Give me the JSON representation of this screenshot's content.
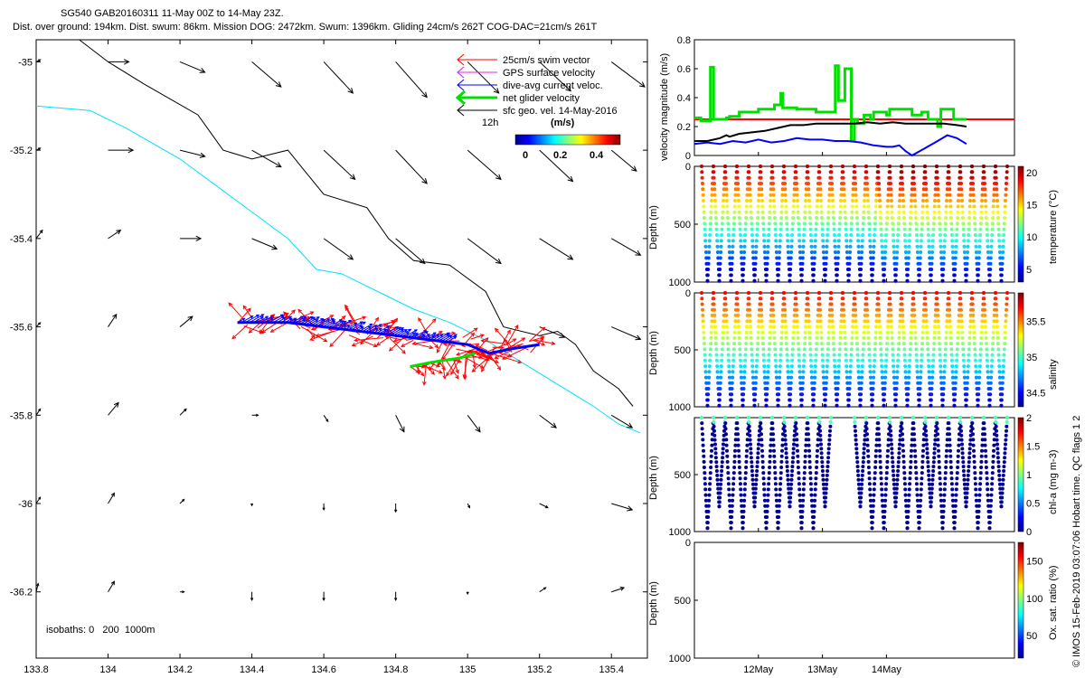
{
  "header": {
    "line1": "SG540 GAB20160311 11-May 00Z to 14-May 23Z.",
    "line2": "Dist. over ground: 194km. Dist. swum: 86km. Mission DOG: 2472km. Swum: 1396km. Gliding 24cm/s 262T COG-DAC=21cm/s 261T"
  },
  "colors": {
    "swim": "#ff0000",
    "gps": "#e020e0",
    "dac": "#0000ff",
    "net": "#00e000",
    "sfc": "#000000",
    "isobath_200": "#000000",
    "isobath_1000": "#00e0ff",
    "threshold_line": "#ff0000"
  },
  "legend": {
    "items": [
      {
        "label": "25cm/s swim vector",
        "color": "#ff0000"
      },
      {
        "label": "GPS surface velocity",
        "color": "#e020e0"
      },
      {
        "label": "dive-avg current veloc.",
        "color": "#0000ff"
      },
      {
        "label": "net glider velocity",
        "color": "#00e000"
      },
      {
        "label": "sfc geo. vel. 14-May-2016",
        "color": "#000000"
      }
    ],
    "scale_label": "12h",
    "colorbar_title": "(m/s)",
    "colorbar_ticks": [
      "0",
      "0.2",
      "0.4"
    ]
  },
  "isobaths_note": "isobaths: 0   200  1000m",
  "imos_note": "© IMOS 15-Feb-2019 03:07:06 Hobart time. QC flags 1  2",
  "chart_data": [
    {
      "type": "map",
      "xlim": [
        133.8,
        135.5
      ],
      "ylim": [
        -36.35,
        -34.95
      ],
      "x_ticks": [
        "133.8",
        "134",
        "134.2",
        "134.4",
        "134.6",
        "134.8",
        "135",
        "135.2",
        "135.4"
      ],
      "x_tick_values": [
        133.8,
        134.0,
        134.2,
        134.4,
        134.6,
        134.8,
        135.0,
        135.2,
        135.4
      ],
      "y_ticks": [
        "-35",
        "-35.2",
        "-35.4",
        "-35.6",
        "-35.8",
        "-36",
        "-36.2"
      ],
      "y_tick_values": [
        -35.0,
        -35.2,
        -35.4,
        -35.6,
        -35.8,
        -36.0,
        -36.2
      ],
      "isobath_200": [
        [
          133.92,
          -34.95
        ],
        [
          134.0,
          -35.0
        ],
        [
          134.1,
          -35.05
        ],
        [
          134.25,
          -35.12
        ],
        [
          134.32,
          -35.2
        ],
        [
          134.4,
          -35.22
        ],
        [
          134.5,
          -35.2
        ],
        [
          134.55,
          -35.25
        ],
        [
          134.6,
          -35.3
        ],
        [
          134.72,
          -35.33
        ],
        [
          134.78,
          -35.4
        ],
        [
          134.85,
          -35.45
        ],
        [
          134.95,
          -35.46
        ],
        [
          135.05,
          -35.52
        ],
        [
          135.1,
          -35.6
        ],
        [
          135.2,
          -35.62
        ],
        [
          135.25,
          -35.61
        ],
        [
          135.3,
          -35.64
        ],
        [
          135.35,
          -35.7
        ],
        [
          135.42,
          -35.74
        ],
        [
          135.46,
          -35.78
        ]
      ],
      "isobath_1000": [
        [
          133.8,
          -35.1
        ],
        [
          133.95,
          -35.11
        ],
        [
          134.05,
          -35.15
        ],
        [
          134.2,
          -35.22
        ],
        [
          134.3,
          -35.28
        ],
        [
          134.4,
          -35.34
        ],
        [
          134.5,
          -35.4
        ],
        [
          134.58,
          -35.47
        ],
        [
          134.65,
          -35.48
        ],
        [
          134.75,
          -35.52
        ],
        [
          134.85,
          -35.56
        ],
        [
          134.95,
          -35.59
        ],
        [
          135.05,
          -35.63
        ],
        [
          135.15,
          -35.68
        ],
        [
          135.25,
          -35.73
        ],
        [
          135.35,
          -35.78
        ],
        [
          135.42,
          -35.82
        ],
        [
          135.48,
          -35.84
        ]
      ],
      "glider_track": [
        [
          134.36,
          -35.59
        ],
        [
          134.5,
          -35.59
        ],
        [
          134.6,
          -35.6
        ],
        [
          134.7,
          -35.61
        ],
        [
          134.8,
          -35.62
        ],
        [
          134.9,
          -35.63
        ],
        [
          135.0,
          -35.64
        ],
        [
          135.06,
          -35.66
        ],
        [
          135.12,
          -35.65
        ],
        [
          135.2,
          -35.64
        ]
      ],
      "glider_track_return": [
        [
          134.84,
          -35.69
        ],
        [
          134.9,
          -35.68
        ],
        [
          134.98,
          -35.67
        ],
        [
          135.02,
          -35.66
        ]
      ],
      "sfc_vectors": [
        {
          "lon": 133.8,
          "lat": -35.0,
          "u": 0.02,
          "v": 0.01
        },
        {
          "lon": 134.0,
          "lat": -35.0,
          "u": 0.1,
          "v": 0.0
        },
        {
          "lon": 134.2,
          "lat": -35.0,
          "u": 0.12,
          "v": -0.05
        },
        {
          "lon": 134.4,
          "lat": -35.0,
          "u": 0.14,
          "v": -0.12
        },
        {
          "lon": 134.6,
          "lat": -35.0,
          "u": 0.14,
          "v": -0.15
        },
        {
          "lon": 134.8,
          "lat": -35.0,
          "u": 0.15,
          "v": -0.17
        },
        {
          "lon": 135.0,
          "lat": -35.0,
          "u": 0.15,
          "v": -0.15
        },
        {
          "lon": 135.2,
          "lat": -35.0,
          "u": 0.15,
          "v": -0.14
        },
        {
          "lon": 135.4,
          "lat": -35.0,
          "u": 0.16,
          "v": -0.12
        },
        {
          "lon": 133.8,
          "lat": -35.2,
          "u": 0.02,
          "v": 0.01
        },
        {
          "lon": 134.0,
          "lat": -35.2,
          "u": 0.12,
          "v": 0.0
        },
        {
          "lon": 134.2,
          "lat": -35.2,
          "u": 0.12,
          "v": -0.03
        },
        {
          "lon": 134.4,
          "lat": -35.2,
          "u": 0.14,
          "v": -0.08
        },
        {
          "lon": 134.6,
          "lat": -35.2,
          "u": 0.15,
          "v": -0.14
        },
        {
          "lon": 134.8,
          "lat": -35.2,
          "u": 0.15,
          "v": -0.16
        },
        {
          "lon": 135.0,
          "lat": -35.2,
          "u": 0.16,
          "v": -0.14
        },
        {
          "lon": 135.2,
          "lat": -35.2,
          "u": 0.16,
          "v": -0.15
        },
        {
          "lon": 135.4,
          "lat": -35.2,
          "u": 0.12,
          "v": -0.1
        },
        {
          "lon": 133.8,
          "lat": -35.4,
          "u": 0.03,
          "v": 0.04
        },
        {
          "lon": 134.0,
          "lat": -35.4,
          "u": 0.06,
          "v": 0.04
        },
        {
          "lon": 134.2,
          "lat": -35.4,
          "u": 0.1,
          "v": 0.0
        },
        {
          "lon": 134.4,
          "lat": -35.4,
          "u": 0.12,
          "v": -0.05
        },
        {
          "lon": 134.6,
          "lat": -35.4,
          "u": 0.14,
          "v": -0.1
        },
        {
          "lon": 134.8,
          "lat": -35.4,
          "u": 0.14,
          "v": -0.12
        },
        {
          "lon": 135.0,
          "lat": -35.4,
          "u": 0.16,
          "v": -0.12
        },
        {
          "lon": 135.2,
          "lat": -35.4,
          "u": 0.16,
          "v": -0.1
        },
        {
          "lon": 135.4,
          "lat": -35.4,
          "u": 0.14,
          "v": -0.08
        },
        {
          "lon": 133.8,
          "lat": -35.6,
          "u": 0.02,
          "v": 0.02
        },
        {
          "lon": 134.0,
          "lat": -35.6,
          "u": 0.04,
          "v": 0.06
        },
        {
          "lon": 134.2,
          "lat": -35.6,
          "u": 0.06,
          "v": 0.05
        },
        {
          "lon": 135.2,
          "lat": -35.6,
          "u": 0.12,
          "v": -0.05
        },
        {
          "lon": 135.4,
          "lat": -35.6,
          "u": 0.14,
          "v": -0.06
        },
        {
          "lon": 133.8,
          "lat": -35.8,
          "u": 0.02,
          "v": 0.03
        },
        {
          "lon": 134.0,
          "lat": -35.8,
          "u": 0.05,
          "v": 0.06
        },
        {
          "lon": 134.2,
          "lat": -35.8,
          "u": 0.03,
          "v": 0.03
        },
        {
          "lon": 134.4,
          "lat": -35.8,
          "u": 0.03,
          "v": 0.0
        },
        {
          "lon": 134.6,
          "lat": -35.8,
          "u": 0.02,
          "v": -0.03
        },
        {
          "lon": 134.8,
          "lat": -35.8,
          "u": 0.04,
          "v": -0.08
        },
        {
          "lon": 135.0,
          "lat": -35.8,
          "u": 0.06,
          "v": -0.08
        },
        {
          "lon": 135.2,
          "lat": -35.8,
          "u": 0.08,
          "v": -0.06
        },
        {
          "lon": 135.4,
          "lat": -35.8,
          "u": 0.1,
          "v": -0.06
        },
        {
          "lon": 133.8,
          "lat": -36.0,
          "u": 0.02,
          "v": 0.03
        },
        {
          "lon": 134.0,
          "lat": -36.0,
          "u": 0.03,
          "v": 0.05
        },
        {
          "lon": 134.2,
          "lat": -36.0,
          "u": 0.02,
          "v": 0.02
        },
        {
          "lon": 134.4,
          "lat": -36.0,
          "u": 0.0,
          "v": -0.01
        },
        {
          "lon": 134.6,
          "lat": -36.0,
          "u": 0.0,
          "v": -0.03
        },
        {
          "lon": 134.8,
          "lat": -36.0,
          "u": 0.0,
          "v": -0.04
        },
        {
          "lon": 135.0,
          "lat": -36.0,
          "u": 0.01,
          "v": -0.02
        },
        {
          "lon": 135.2,
          "lat": -36.0,
          "u": 0.04,
          "v": -0.02
        },
        {
          "lon": 135.4,
          "lat": -36.0,
          "u": 0.1,
          "v": -0.03
        },
        {
          "lon": 133.8,
          "lat": -36.2,
          "u": 0.01,
          "v": 0.04
        },
        {
          "lon": 134.0,
          "lat": -36.2,
          "u": 0.03,
          "v": 0.05
        },
        {
          "lon": 134.2,
          "lat": -36.2,
          "u": 0.02,
          "v": 0.0
        },
        {
          "lon": 134.4,
          "lat": -36.2,
          "u": 0.0,
          "v": -0.04
        },
        {
          "lon": 134.6,
          "lat": -36.2,
          "u": 0.0,
          "v": -0.04
        },
        {
          "lon": 134.8,
          "lat": -36.2,
          "u": 0.0,
          "v": -0.04
        },
        {
          "lon": 135.0,
          "lat": -36.2,
          "u": 0.0,
          "v": -0.01
        },
        {
          "lon": 135.2,
          "lat": -36.2,
          "u": 0.03,
          "v": 0.02
        },
        {
          "lon": 135.4,
          "lat": -36.2,
          "u": 0.06,
          "v": 0.02
        }
      ]
    },
    {
      "type": "line",
      "ylabel": "velocity magnitude (m/s)",
      "ylim": [
        0,
        0.8
      ],
      "y_ticks": [
        "0",
        "0.2",
        "0.4",
        "0.6",
        "0.8"
      ],
      "y_tick_values": [
        0,
        0.2,
        0.4,
        0.6,
        0.8
      ],
      "xlim": [
        0,
        5
      ],
      "x_ticks": [
        "12May",
        "13May",
        "14May"
      ],
      "x_tick_values": [
        1,
        2,
        3
      ],
      "threshold": 0.25,
      "series": [
        {
          "color": "#00e000",
          "x": [
            0,
            0.1,
            0.1,
            0.25,
            0.25,
            0.3,
            0.3,
            0.45,
            0.45,
            0.5,
            0.5,
            0.55,
            0.55,
            0.7,
            0.7,
            0.75,
            0.75,
            0.85,
            0.85,
            1.0,
            1.0,
            1.15,
            1.15,
            1.25,
            1.25,
            1.35,
            1.35,
            1.38,
            1.38,
            1.55,
            1.55,
            1.6,
            1.6,
            1.75,
            1.75,
            1.9,
            1.9,
            2.05,
            2.05,
            2.2,
            2.2,
            2.25,
            2.25,
            2.35,
            2.35,
            2.45,
            2.45,
            2.5,
            2.5,
            2.55,
            2.55,
            2.65,
            2.65,
            2.75,
            2.75,
            2.8,
            2.8,
            2.9,
            2.9,
            3.0,
            3.0,
            3.05,
            3.05,
            3.25,
            3.25,
            3.4,
            3.4,
            3.55,
            3.55,
            3.65,
            3.65,
            3.8,
            3.8,
            3.85,
            3.85,
            4.0,
            4.0,
            4.05,
            4.05,
            4.25,
            4.25
          ],
          "y": [
            0.26,
            0.26,
            0.24,
            0.24,
            0.61,
            0.61,
            0.25,
            0.25,
            0.25,
            0.25,
            0.26,
            0.26,
            0.27,
            0.27,
            0.3,
            0.3,
            0.3,
            0.3,
            0.3,
            0.3,
            0.32,
            0.32,
            0.32,
            0.32,
            0.35,
            0.35,
            0.43,
            0.43,
            0.33,
            0.33,
            0.33,
            0.33,
            0.32,
            0.32,
            0.32,
            0.32,
            0.3,
            0.3,
            0.3,
            0.3,
            0.62,
            0.62,
            0.38,
            0.38,
            0.6,
            0.6,
            0.1,
            0.1,
            0.25,
            0.25,
            0.22,
            0.22,
            0.28,
            0.28,
            0.25,
            0.25,
            0.3,
            0.3,
            0.3,
            0.3,
            0.28,
            0.28,
            0.32,
            0.32,
            0.32,
            0.32,
            0.28,
            0.28,
            0.3,
            0.3,
            0.25,
            0.25,
            0.2,
            0.2,
            0.32,
            0.32,
            0.32,
            0.32,
            0.25,
            0.25,
            0.25
          ]
        },
        {
          "color": "#000000",
          "x": [
            0,
            0.2,
            0.4,
            0.5,
            0.55,
            0.7,
            0.9,
            1.1,
            1.3,
            1.5,
            1.7,
            1.9,
            2.1,
            2.3,
            2.5,
            2.7,
            2.9,
            3.1,
            3.3,
            3.5,
            3.7,
            3.9,
            4.1,
            4.25
          ],
          "y": [
            0.1,
            0.1,
            0.12,
            0.14,
            0.13,
            0.15,
            0.16,
            0.17,
            0.19,
            0.21,
            0.21,
            0.22,
            0.22,
            0.22,
            0.22,
            0.23,
            0.22,
            0.23,
            0.22,
            0.22,
            0.22,
            0.22,
            0.21,
            0.2
          ]
        },
        {
          "color": "#0000ff",
          "x": [
            0,
            0.2,
            0.4,
            0.6,
            0.8,
            1.0,
            1.2,
            1.4,
            1.6,
            1.8,
            2.0,
            2.2,
            2.4,
            2.6,
            2.8,
            3.0,
            3.1,
            3.2,
            3.3,
            3.4,
            3.6,
            3.8,
            3.95,
            4.1,
            4.25
          ],
          "y": [
            0.08,
            0.09,
            0.08,
            0.1,
            0.09,
            0.11,
            0.09,
            0.1,
            0.12,
            0.11,
            0.11,
            0.1,
            0.1,
            0.09,
            0.07,
            0.06,
            0.06,
            0.07,
            0.03,
            0.0,
            0.05,
            0.1,
            0.14,
            0.12,
            0.08
          ]
        }
      ]
    },
    {
      "type": "scatter",
      "ylabel": "Depth (m)",
      "colorbar_label": "temperature (°C)",
      "ylim": [
        1000,
        0
      ],
      "y_ticks": [
        "0",
        "500",
        "1000"
      ],
      "y_tick_values": [
        0,
        500,
        1000
      ],
      "clim": [
        3,
        21
      ],
      "c_ticks": [
        "20",
        "15",
        "10",
        "5"
      ],
      "c_tick_values": [
        20,
        15,
        10,
        5
      ],
      "profile": "temperature"
    },
    {
      "type": "scatter",
      "ylabel": "Depth (m)",
      "colorbar_label": "salinity",
      "ylim": [
        1000,
        0
      ],
      "y_ticks": [
        "0",
        "500",
        "1000"
      ],
      "y_tick_values": [
        0,
        500,
        1000
      ],
      "clim": [
        34.3,
        35.9
      ],
      "c_ticks": [
        "35.5",
        "35",
        "34.5"
      ],
      "c_tick_values": [
        35.5,
        35.0,
        34.5
      ],
      "profile": "salinity"
    },
    {
      "type": "scatter",
      "ylabel": "Depth (m)",
      "colorbar_label": "chl-a (mg m-3)",
      "ylim": [
        1000,
        0
      ],
      "y_ticks": [
        "500",
        "1000"
      ],
      "y_tick_values": [
        500,
        1000
      ],
      "clim": [
        0,
        2
      ],
      "c_ticks": [
        "2",
        "1.5",
        "1",
        "0.5",
        "0"
      ],
      "c_tick_values": [
        2,
        1.5,
        1,
        0.5,
        0
      ],
      "profile": "chl"
    },
    {
      "type": "scatter",
      "ylabel": "Depth (m)",
      "colorbar_label": "Ox. sat. ratio (%)",
      "ylim": [
        1000,
        0
      ],
      "y_ticks": [
        "0",
        "500",
        "1000"
      ],
      "y_tick_values": [
        0,
        500,
        1000
      ],
      "clim": [
        20,
        175
      ],
      "c_ticks": [
        "150",
        "100",
        "50"
      ],
      "c_tick_values": [
        150,
        100,
        50
      ],
      "x_ticks": [
        "12May",
        "13May",
        "14May"
      ],
      "x_tick_values": [
        1,
        2,
        3
      ],
      "profile": "empty"
    }
  ]
}
